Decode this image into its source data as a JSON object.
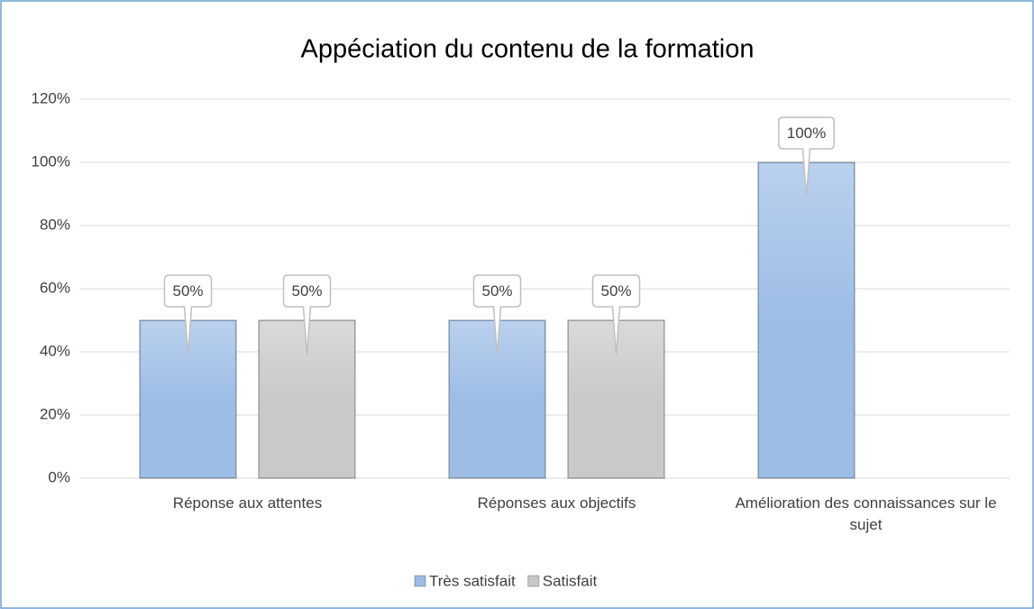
{
  "chart_data": {
    "type": "bar",
    "title": "Appéciation du contenu de la formation",
    "categories": [
      "Réponse aux attentes",
      "Réponses aux objectifs",
      "Amélioration des connaissances sur le sujet"
    ],
    "series": [
      {
        "name": "Très satisfait",
        "color": "#9dbde6",
        "values": [
          50,
          50,
          100
        ],
        "value_labels": [
          "50%",
          "50%",
          "100%"
        ]
      },
      {
        "name": "Satisfait",
        "color": "#c9c9c9",
        "values": [
          50,
          50,
          null
        ],
        "value_labels": [
          "50%",
          "50%",
          null
        ]
      }
    ],
    "ylim": [
      0,
      120
    ],
    "yticks": [
      {
        "value": 0,
        "label": "0%"
      },
      {
        "value": 20,
        "label": "20%"
      },
      {
        "value": 40,
        "label": "40%"
      },
      {
        "value": 60,
        "label": "60%"
      },
      {
        "value": 80,
        "label": "80%"
      },
      {
        "value": 100,
        "label": "100%"
      },
      {
        "value": 120,
        "label": "120%"
      }
    ],
    "grid": true,
    "legend": "bottom"
  }
}
